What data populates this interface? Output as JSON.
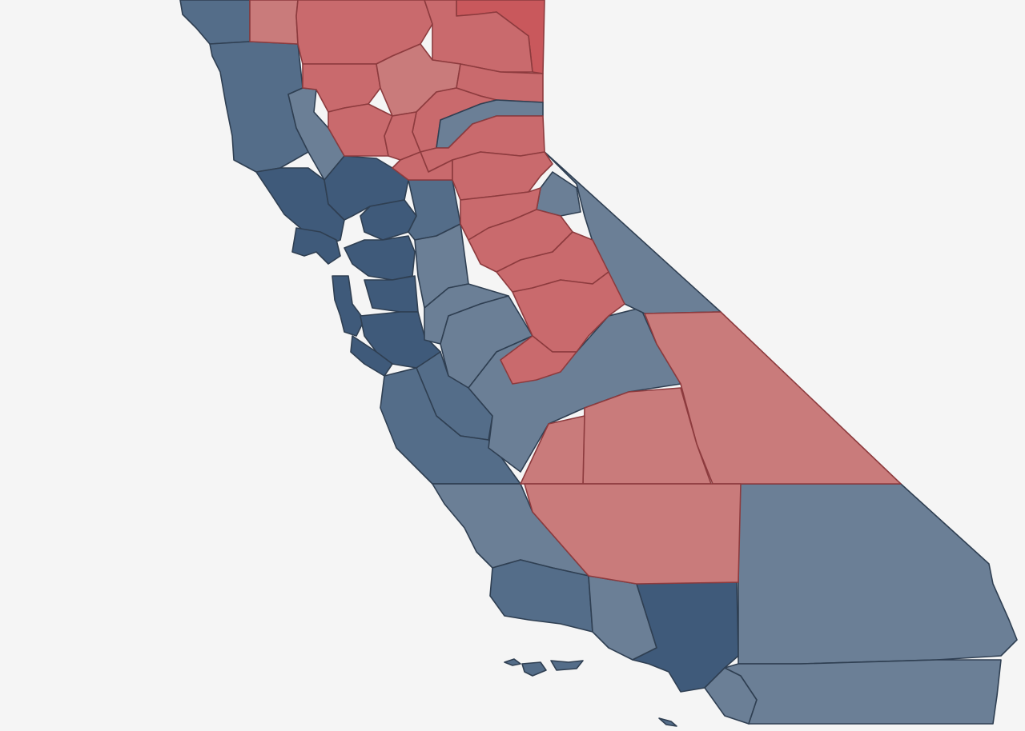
{
  "map": {
    "colors": {
      "background": "#f5f5f5",
      "dem_strong": "#3f5a7a",
      "dem": "#546d89",
      "dem_light": "#6b7f96",
      "rep_strong": "#c9585c",
      "rep": "#c96a6d",
      "rep_light": "#c97b7b",
      "dem_stroke": "#2f3f52",
      "rep_stroke": "#8d3b3e"
    }
  }
}
